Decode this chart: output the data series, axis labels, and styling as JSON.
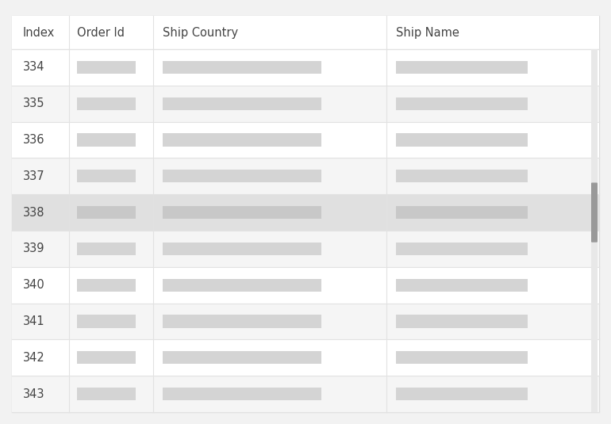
{
  "background_color": "#f2f2f2",
  "table_bg": "#ffffff",
  "header_bg": "#ffffff",
  "odd_row_bg": "#f5f5f5",
  "even_row_bg": "#ffffff",
  "selected_row_bg": "#e0e0e0",
  "header_text_color": "#444444",
  "index_text_color": "#444444",
  "placeholder_color": "#d4d4d4",
  "placeholder_color_selected": "#c8c8c8",
  "scrollbar_track": "#e8e8e8",
  "scrollbar_thumb": "#999999",
  "border_color": "#e2e2e2",
  "outer_border_color": "#dddddd",
  "columns": [
    "Index",
    "Order Id",
    "Ship Country",
    "Ship Name"
  ],
  "rows": [
    334,
    335,
    336,
    337,
    338,
    339,
    340,
    341,
    342,
    343
  ],
  "selected_row": 338,
  "fig_width": 7.7,
  "fig_height": 5.35,
  "font_size": 10.5
}
